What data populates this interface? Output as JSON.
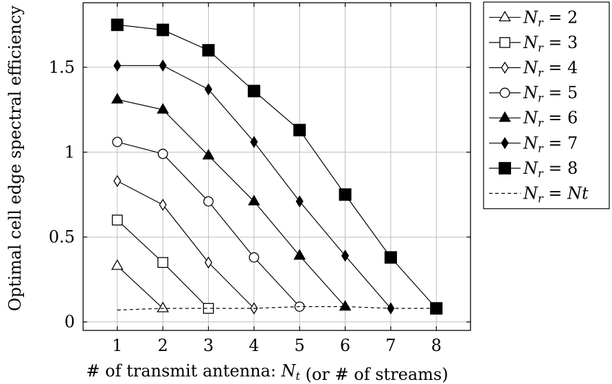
{
  "chart_data": {
    "type": "line",
    "xlabel": "# of transmit antenna: N_t (or # of streams)",
    "ylabel": "Optimal cell edge spectral efficiency",
    "xlim": [
      0.25,
      8.75
    ],
    "ylim": [
      -0.05,
      1.88
    ],
    "xticks": [
      1,
      2,
      3,
      4,
      5,
      6,
      7,
      8
    ],
    "yticks": [
      0,
      0.5,
      1,
      1.5
    ],
    "ytick_labels": [
      "0",
      "0.5",
      "1",
      "1.5"
    ],
    "grid": true,
    "legend_position": "outside-right-top",
    "series": [
      {
        "name": "N_r = 2",
        "marker": "triangle-open",
        "dash": "solid",
        "x": [
          1,
          2
        ],
        "y": [
          0.33,
          0.08
        ]
      },
      {
        "name": "N_r = 3",
        "marker": "square-open",
        "dash": "solid",
        "x": [
          1,
          2,
          3
        ],
        "y": [
          0.6,
          0.35,
          0.08
        ]
      },
      {
        "name": "N_r = 4",
        "marker": "diamond-open",
        "dash": "solid",
        "x": [
          1,
          2,
          3,
          4
        ],
        "y": [
          0.83,
          0.69,
          0.35,
          0.08
        ]
      },
      {
        "name": "N_r = 5",
        "marker": "circle-open",
        "dash": "solid",
        "x": [
          1,
          2,
          3,
          4,
          5
        ],
        "y": [
          1.06,
          0.99,
          0.71,
          0.38,
          0.09
        ]
      },
      {
        "name": "N_r = 6",
        "marker": "triangle-filled",
        "dash": "solid",
        "x": [
          1,
          2,
          3,
          4,
          5,
          6
        ],
        "y": [
          1.31,
          1.25,
          0.98,
          0.71,
          0.39,
          0.09
        ]
      },
      {
        "name": "N_r = 7",
        "marker": "diamond-filled",
        "dash": "solid",
        "x": [
          1,
          2,
          3,
          4,
          5,
          6,
          7
        ],
        "y": [
          1.51,
          1.51,
          1.37,
          1.06,
          0.71,
          0.39,
          0.08
        ]
      },
      {
        "name": "N_r = 8",
        "marker": "square-filled",
        "dash": "solid",
        "x": [
          1,
          2,
          3,
          4,
          5,
          6,
          7,
          8
        ],
        "y": [
          1.75,
          1.72,
          1.6,
          1.36,
          1.13,
          0.75,
          0.38,
          0.08
        ]
      },
      {
        "name": "N_r = Nt",
        "marker": "none",
        "dash": "dashed",
        "x": [
          1,
          2,
          3,
          4,
          5,
          6,
          7,
          8
        ],
        "y": [
          0.07,
          0.08,
          0.08,
          0.08,
          0.09,
          0.09,
          0.08,
          0.08
        ]
      }
    ]
  }
}
